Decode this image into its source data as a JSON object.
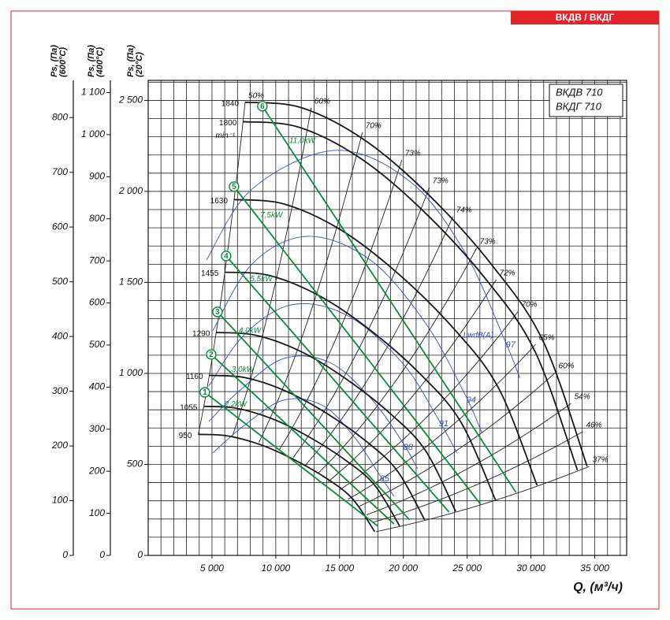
{
  "header": {
    "tag": "ВКДВ / ВКДГ"
  },
  "chart_data": {
    "type": "line",
    "title_box": [
      "ВКДВ 710",
      "ВКДГ 710"
    ],
    "x_label": "Q, (м³/ч)",
    "xlim": [
      0,
      37500
    ],
    "xticks": [
      {
        "value": 5000,
        "label": "5 000"
      },
      {
        "value": 10000,
        "label": "10 000"
      },
      {
        "value": 15000,
        "label": "15 000"
      },
      {
        "value": 20000,
        "label": "20 000"
      },
      {
        "value": 25000,
        "label": "25 000"
      },
      {
        "value": 30000,
        "label": "30 000"
      },
      {
        "value": 35000,
        "label": "35 000"
      }
    ],
    "xgrid": [
      1000,
      2000,
      3000,
      4000,
      5000,
      6000,
      7000,
      8000,
      9000,
      10000,
      11000,
      12000,
      13000,
      14000,
      15000,
      16000,
      17000,
      18000,
      19000,
      20000,
      21000,
      22000,
      23000,
      24000,
      25000,
      26000,
      27000,
      28000,
      29000,
      30000,
      31000,
      32000,
      33000,
      34000,
      35000,
      36000,
      37000
    ],
    "y_label": "Ps, (Па)",
    "y_label_temp": "(20°C)",
    "ylim": [
      0,
      2610
    ],
    "yticks": [
      0,
      500,
      {
        "value": 1000,
        "label": "1 000"
      },
      {
        "value": 1500,
        "label": "1 500"
      },
      {
        "value": 2000,
        "label": "2 000"
      },
      {
        "value": 2500,
        "label": "2 500"
      }
    ],
    "ygrid": [
      100,
      200,
      300,
      400,
      500,
      600,
      700,
      800,
      900,
      1000,
      1100,
      1200,
      1300,
      1400,
      1500,
      1600,
      1700,
      1800,
      1900,
      2000,
      2100,
      2200,
      2300,
      2400,
      2500,
      2600
    ],
    "grid": true,
    "y_axes": [
      {
        "label": "Ps, (Па)",
        "temp": "(400°C)",
        "lim": [
          0,
          1129
        ],
        "ticks": [
          0,
          100,
          200,
          300,
          400,
          500,
          600,
          700,
          800,
          900,
          {
            "value": 1000,
            "label": "1 000"
          },
          {
            "value": 1100,
            "label": "1 100"
          }
        ]
      },
      {
        "label": "Ps, (Па)",
        "temp": "(600°C)",
        "lim": [
          0,
          868
        ],
        "ticks": [
          0,
          100,
          200,
          300,
          400,
          500,
          600,
          700,
          800
        ]
      }
    ],
    "speed_unit": "min⁻¹",
    "series": [
      {
        "name": "1840",
        "color": "#1a1a1a",
        "x": [
          7600,
          12000,
          17000,
          22000,
          27000,
          31000,
          34400
        ],
        "values": [
          2490,
          2460,
          2280,
          1980,
          1590,
          1170,
          490
        ]
      },
      {
        "name": "1800",
        "color": "#1a1a1a",
        "x": [
          7430,
          11740,
          16630,
          21520,
          26410,
          30320,
          33640
        ],
        "values": [
          2383,
          2354,
          2182,
          1895,
          1522,
          1120,
          469
        ]
      },
      {
        "name": "1630",
        "color": "#1a1a1a",
        "x": [
          6730,
          10630,
          15060,
          19490,
          23920,
          27470,
          30480
        ],
        "values": [
          1955,
          1931,
          1790,
          1554,
          1248,
          918,
          385
        ]
      },
      {
        "name": "1455",
        "color": "#1a1a1a",
        "x": [
          6010,
          9490,
          13450,
          17400,
          21360,
          24520,
          27210
        ],
        "values": [
          1556,
          1538,
          1425,
          1238,
          994,
          731,
          306
        ]
      },
      {
        "name": "1290",
        "color": "#1a1a1a",
        "x": [
          5330,
          8410,
          11920,
          15420,
          18930,
          21730,
          24110
        ],
        "values": [
          1225,
          1210,
          1122,
          974,
          782,
          576,
          241
        ]
      },
      {
        "name": "1160",
        "color": "#1a1a1a",
        "x": [
          4790,
          7560,
          10710,
          13860,
          17010,
          19530,
          21670
        ],
        "values": [
          989,
          977,
          905,
          786,
          631,
          464,
          195
        ]
      },
      {
        "name": "1055",
        "color": "#1a1a1a",
        "x": [
          4355,
          6880,
          9740,
          12610,
          15470,
          17760,
          19710
        ],
        "values": [
          819,
          809,
          750,
          651,
          523,
          385,
          161
        ]
      },
      {
        "name": "950",
        "color": "#1a1a1a",
        "x": [
          3920,
          6190,
          8770,
          11350,
          13930,
          16000,
          17750
        ],
        "values": [
          665,
          657,
          609,
          529,
          425,
          312,
          131
        ]
      }
    ],
    "efficiency": [
      {
        "label": "50%",
        "x": 7600,
        "y": 2490
      },
      {
        "label": "60%",
        "x": 12780,
        "y": 2459
      },
      {
        "label": "70%",
        "x": 16790,
        "y": 2325
      },
      {
        "label": "73%",
        "x": 19880,
        "y": 2173
      },
      {
        "label": "73%",
        "x": 22040,
        "y": 2022
      },
      {
        "label": "74%",
        "x": 23890,
        "y": 1861
      },
      {
        "label": "73%",
        "x": 25740,
        "y": 1688
      },
      {
        "label": "72%",
        "x": 27280,
        "y": 1515
      },
      {
        "label": "70%",
        "x": 29010,
        "y": 1342
      },
      {
        "label": "65%",
        "x": 30370,
        "y": 1160
      },
      {
        "label": "60%",
        "x": 31910,
        "y": 1004
      },
      {
        "label": "54%",
        "x": 33150,
        "y": 835
      },
      {
        "label": "46%",
        "x": 34070,
        "y": 680
      },
      {
        "label": "37%",
        "x": 34570,
        "y": 489
      }
    ],
    "power_color": "#0b8a3c",
    "power": [
      {
        "marker": "1",
        "label": "2,2kW",
        "x": [
          4440,
          18020
        ],
        "y": [
          896,
          160
        ]
      },
      {
        "marker": "2",
        "label": "3,0kW",
        "x": [
          4940,
          19260
        ],
        "y": [
          1104,
          173
        ]
      },
      {
        "marker": "3",
        "label": "4,0kW",
        "x": [
          5430,
          20490
        ],
        "y": [
          1338,
          195
        ]
      },
      {
        "marker": "4",
        "label": "5,5kW",
        "x": [
          6110,
          23580
        ],
        "y": [
          1645,
          238
        ]
      },
      {
        "marker": "5",
        "label": "7,5kW",
        "x": [
          6730,
          26050
        ],
        "y": [
          2026,
          281
        ]
      },
      {
        "marker": "6",
        "label": "11,0kW",
        "x": [
          8950,
          28830
        ],
        "y": [
          2468,
          346
        ]
      }
    ],
    "noise_color": "#3b4fc4",
    "noise_label": "LwdB(A)",
    "noise": [
      {
        "label": "97",
        "x": [
          4570,
          8150,
          14630,
          20490,
          24810,
          27900,
          29140
        ],
        "y": [
          1623,
          2013,
          2225,
          2056,
          1667,
          1190,
          974
        ]
      },
      {
        "label": "94",
        "x": [
          5060,
          8150,
          12470,
          17410,
          21730,
          24810,
          26170
        ],
        "y": [
          1234,
          1602,
          1753,
          1623,
          1277,
          887,
          671
        ]
      },
      {
        "label": "91",
        "x": [
          4750,
          7530,
          11240,
          15560,
          19880,
          22660,
          24200
        ],
        "y": [
          931,
          1212,
          1377,
          1320,
          1061,
          758,
          563
        ]
      },
      {
        "label": "88",
        "x": [
          4750,
          7220,
          10620,
          14200,
          17410,
          19880,
          21110
        ],
        "y": [
          736,
          909,
          1082,
          1061,
          866,
          628,
          476
        ]
      },
      {
        "label": "85",
        "x": [
          5060,
          7530,
          10620,
          13700,
          16170,
          18020,
          19260
        ],
        "y": [
          563,
          714,
          853,
          823,
          649,
          455,
          325
        ]
      }
    ]
  }
}
